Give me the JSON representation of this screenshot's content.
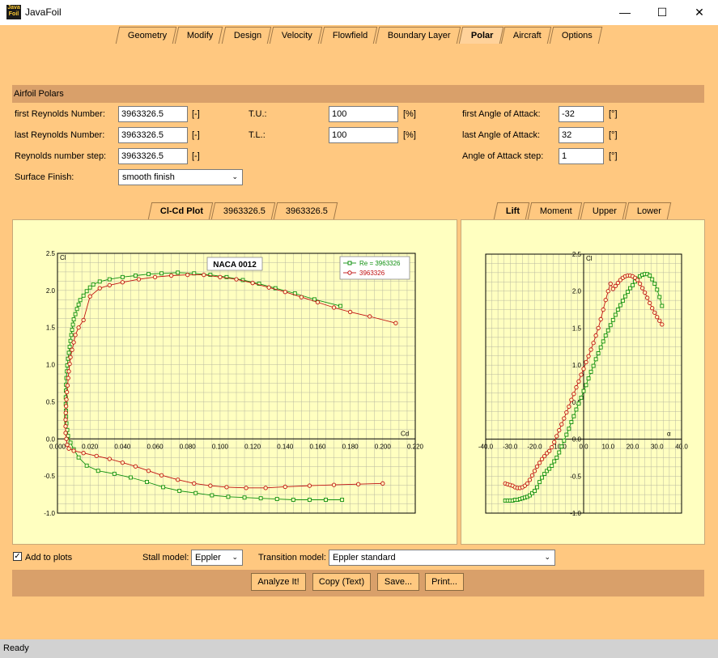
{
  "window": {
    "title": "JavaFoil",
    "icon_text": "Java Foil",
    "minimize": "—",
    "maximize": "☐",
    "close": "✕"
  },
  "main_tabs": [
    {
      "label": "Geometry",
      "active": false
    },
    {
      "label": "Modify",
      "active": false
    },
    {
      "label": "Design",
      "active": false
    },
    {
      "label": "Velocity",
      "active": false
    },
    {
      "label": "Flowfield",
      "active": false
    },
    {
      "label": "Boundary Layer",
      "active": false
    },
    {
      "label": "Polar",
      "active": true
    },
    {
      "label": "Aircraft",
      "active": false
    },
    {
      "label": "Options",
      "active": false
    }
  ],
  "section_title": "Airfoil Polars",
  "form": {
    "first_re_label": "first Reynolds Number:",
    "first_re": "3963326.5",
    "last_re_label": "last Reynolds Number:",
    "last_re": "3963326.5",
    "re_step_label": "Reynolds number step:",
    "re_step": "3963326.5",
    "unit_dimless": "[-]",
    "surface_label": "Surface Finish:",
    "surface": "smooth finish",
    "tu_label": "T.U.:",
    "tu": "100",
    "tl_label": "T.L.:",
    "tl": "100",
    "unit_percent": "[%]",
    "first_aoa_label": "first Angle of Attack:",
    "first_aoa": "-32",
    "last_aoa_label": "last Angle of Attack:",
    "last_aoa": "32",
    "aoa_step_label": "Angle of Attack step:",
    "aoa_step": "1",
    "unit_deg": "[°]"
  },
  "left_tabs": [
    {
      "label": "Cl-Cd Plot",
      "active": true
    },
    {
      "label": "3963326.5",
      "active": false
    },
    {
      "label": "3963326.5",
      "active": false
    }
  ],
  "right_tabs": [
    {
      "label": "Lift",
      "active": true
    },
    {
      "label": "Moment",
      "active": false
    },
    {
      "label": "Upper",
      "active": false
    },
    {
      "label": "Lower",
      "active": false
    }
  ],
  "bottom": {
    "add_to_plots_label": "Add to plots",
    "add_to_plots": true,
    "stall_label": "Stall model:",
    "stall": "Eppler",
    "transition_label": "Transition model:",
    "transition": "Eppler standard"
  },
  "buttons": {
    "analyze": "Analyze It!",
    "copy": "Copy (Text)",
    "save": "Save...",
    "print": "Print..."
  },
  "status": "Ready",
  "colors": {
    "bg": "#ffc880",
    "band": "#d9a06a",
    "plot_bg": "#ffffc0",
    "green": "#109010",
    "red": "#c01010"
  },
  "chart_data": [
    {
      "type": "line",
      "title": "NACA 0012",
      "xlabel": "Cd",
      "ylabel": "Cl",
      "xlim": [
        0.0,
        0.22
      ],
      "ylim": [
        -1.0,
        2.5
      ],
      "xticks": [
        "0.000",
        "0.020",
        "0.040",
        "0.060",
        "0.080",
        "0.100",
        "0.120",
        "0.140",
        "0.160",
        "0.180",
        "0.200",
        "0.220"
      ],
      "yticks": [
        "-1.0",
        "-0.5",
        "0.0",
        "0.5",
        "1.0",
        "1.5",
        "2.0",
        "2.5"
      ],
      "grid": true,
      "legend": "top-right",
      "series": [
        {
          "name": "Re = 3963326",
          "color": "#109010",
          "x": [
            0.175,
            0.165,
            0.155,
            0.145,
            0.135,
            0.125,
            0.115,
            0.105,
            0.095,
            0.085,
            0.075,
            0.065,
            0.055,
            0.045,
            0.035,
            0.025,
            0.018,
            0.013,
            0.01,
            0.008,
            0.0065,
            0.006,
            0.0055,
            0.0053,
            0.0052,
            0.0051,
            0.0051,
            0.0052,
            0.0053,
            0.0055,
            0.0058,
            0.006,
            0.0065,
            0.007,
            0.0075,
            0.008,
            0.0085,
            0.009,
            0.0095,
            0.01,
            0.011,
            0.012,
            0.013,
            0.014,
            0.016,
            0.018,
            0.02,
            0.022,
            0.026,
            0.032,
            0.04,
            0.048,
            0.056,
            0.064,
            0.074,
            0.084,
            0.094,
            0.104,
            0.114,
            0.124,
            0.134,
            0.146,
            0.158,
            0.174
          ],
          "y": [
            -0.82,
            -0.82,
            -0.82,
            -0.82,
            -0.81,
            -0.8,
            -0.79,
            -0.78,
            -0.76,
            -0.73,
            -0.7,
            -0.65,
            -0.58,
            -0.52,
            -0.47,
            -0.43,
            -0.36,
            -0.25,
            -0.14,
            -0.05,
            0.04,
            0.12,
            0.21,
            0.3,
            0.38,
            0.47,
            0.56,
            0.65,
            0.73,
            0.82,
            0.91,
            0.99,
            1.08,
            1.16,
            1.24,
            1.32,
            1.4,
            1.47,
            1.54,
            1.61,
            1.68,
            1.75,
            1.81,
            1.87,
            1.93,
            1.99,
            2.04,
            2.08,
            2.12,
            2.15,
            2.18,
            2.2,
            2.22,
            2.23,
            2.24,
            2.23,
            2.21,
            2.18,
            2.14,
            2.09,
            2.03,
            1.96,
            1.88,
            1.79
          ]
        },
        {
          "name": "3963326",
          "color": "#c01010",
          "x": [
            0.2,
            0.185,
            0.17,
            0.155,
            0.14,
            0.128,
            0.116,
            0.104,
            0.094,
            0.084,
            0.074,
            0.064,
            0.056,
            0.048,
            0.04,
            0.032,
            0.024,
            0.016,
            0.01,
            0.007,
            0.006,
            0.0055,
            0.005,
            0.005,
            0.005,
            0.0051,
            0.0053,
            0.0055,
            0.0058,
            0.0062,
            0.0066,
            0.007,
            0.0075,
            0.008,
            0.009,
            0.01,
            0.011,
            0.013,
            0.016,
            0.02,
            0.026,
            0.032,
            0.04,
            0.05,
            0.06,
            0.07,
            0.08,
            0.09,
            0.1,
            0.11,
            0.12,
            0.13,
            0.14,
            0.15,
            0.16,
            0.17,
            0.18,
            0.192,
            0.208
          ],
          "y": [
            -0.6,
            -0.61,
            -0.62,
            -0.63,
            -0.645,
            -0.66,
            -0.66,
            -0.65,
            -0.63,
            -0.6,
            -0.55,
            -0.49,
            -0.43,
            -0.37,
            -0.32,
            -0.27,
            -0.23,
            -0.19,
            -0.16,
            -0.13,
            -0.08,
            0.0,
            0.08,
            0.17,
            0.26,
            0.35,
            0.44,
            0.53,
            0.63,
            0.72,
            0.82,
            0.91,
            1.01,
            1.1,
            1.2,
            1.3,
            1.4,
            1.5,
            1.6,
            1.92,
            2.03,
            2.07,
            2.11,
            2.15,
            2.18,
            2.2,
            2.21,
            2.21,
            2.18,
            2.15,
            2.1,
            2.04,
            1.98,
            1.91,
            1.84,
            1.77,
            1.71,
            1.65,
            1.56
          ]
        }
      ]
    },
    {
      "type": "line",
      "xlabel": "α",
      "ylabel": "Cl",
      "xlim": [
        -40,
        40
      ],
      "ylim": [
        -1.0,
        2.5
      ],
      "xticks": [
        "-40.0",
        "-30.0",
        "-20.0",
        "-10.0",
        "0.0",
        "10.0",
        "20.0",
        "30.0",
        "40.0"
      ],
      "yticks": [
        "-1.0",
        "-0.5",
        "0.0",
        "0.5",
        "1.0",
        "1.5",
        "2.0",
        "2.5"
      ],
      "grid": true,
      "series": [
        {
          "name": "Re = 3963326",
          "color": "#109010",
          "x": [
            -32,
            -31,
            -30,
            -29,
            -28,
            -27,
            -26,
            -25,
            -24,
            -23,
            -22,
            -21,
            -20,
            -19,
            -18,
            -17,
            -16,
            -15,
            -14,
            -13,
            -12,
            -11,
            -10,
            -9,
            -8,
            -7,
            -6,
            -5,
            -4,
            -3,
            -2,
            -1,
            0,
            1,
            2,
            3,
            4,
            5,
            6,
            7,
            8,
            9,
            10,
            11,
            12,
            13,
            14,
            15,
            16,
            17,
            18,
            19,
            20,
            21,
            22,
            23,
            24,
            25,
            26,
            27,
            28,
            29,
            30,
            31,
            32
          ],
          "y": [
            -0.83,
            -0.83,
            -0.83,
            -0.83,
            -0.82,
            -0.82,
            -0.81,
            -0.8,
            -0.79,
            -0.78,
            -0.76,
            -0.73,
            -0.7,
            -0.65,
            -0.58,
            -0.52,
            -0.47,
            -0.43,
            -0.4,
            -0.36,
            -0.3,
            -0.25,
            -0.18,
            -0.1,
            -0.02,
            0.06,
            0.14,
            0.23,
            0.31,
            0.4,
            0.48,
            0.56,
            0.65,
            0.73,
            0.82,
            0.91,
            0.99,
            1.08,
            1.16,
            1.24,
            1.32,
            1.4,
            1.47,
            1.54,
            1.61,
            1.68,
            1.75,
            1.81,
            1.87,
            1.93,
            1.99,
            2.04,
            2.08,
            2.13,
            2.17,
            2.2,
            2.22,
            2.23,
            2.23,
            2.21,
            2.16,
            2.1,
            2.02,
            1.92,
            1.8
          ]
        },
        {
          "name": "3963326",
          "color": "#c01010",
          "x": [
            -32,
            -31,
            -30,
            -29,
            -28,
            -27,
            -26,
            -25,
            -24,
            -23,
            -22,
            -21,
            -20,
            -19,
            -18,
            -17,
            -16,
            -15,
            -14,
            -13,
            -12,
            -11,
            -10,
            -9,
            -8,
            -7,
            -6,
            -5,
            -4,
            -3,
            -2,
            -1,
            0,
            1,
            2,
            3,
            4,
            5,
            6,
            7,
            8,
            9,
            10,
            11,
            12,
            13,
            14,
            15,
            16,
            17,
            18,
            19,
            20,
            21,
            22,
            23,
            24,
            25,
            26,
            27,
            28,
            29,
            30,
            31,
            32
          ],
          "y": [
            -0.6,
            -0.61,
            -0.62,
            -0.63,
            -0.65,
            -0.66,
            -0.66,
            -0.65,
            -0.63,
            -0.6,
            -0.55,
            -0.49,
            -0.43,
            -0.37,
            -0.32,
            -0.27,
            -0.23,
            -0.19,
            -0.16,
            -0.11,
            -0.04,
            0.04,
            0.12,
            0.2,
            0.28,
            0.36,
            0.44,
            0.53,
            0.61,
            0.7,
            0.78,
            0.87,
            0.95,
            1.04,
            1.12,
            1.21,
            1.3,
            1.4,
            1.5,
            1.62,
            1.75,
            1.88,
            2.0,
            2.1,
            2.03,
            2.07,
            2.11,
            2.15,
            2.18,
            2.2,
            2.21,
            2.21,
            2.2,
            2.18,
            2.15,
            2.1,
            2.04,
            1.98,
            1.91,
            1.84,
            1.77,
            1.71,
            1.65,
            1.6,
            1.55
          ]
        }
      ]
    }
  ]
}
